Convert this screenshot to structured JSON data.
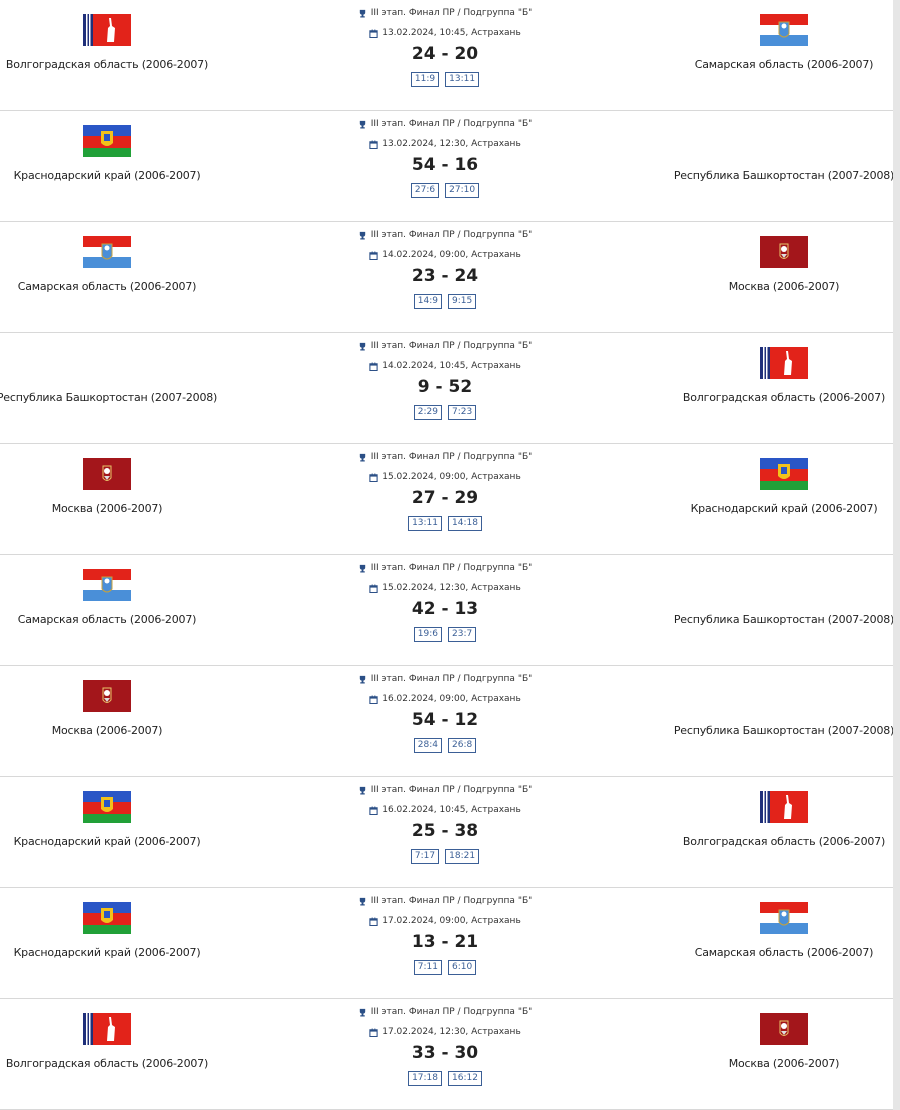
{
  "matches": [
    {
      "home": "Волгоградская область (2006-2007)",
      "away": "Самарская область (2006-2007)",
      "stage": "III этап. Финал ПР / Подгруппа \"Б\"",
      "date": "13.02.2024, 10:45, Астрахань",
      "score": "24 - 20",
      "periods": [
        "11:9",
        "13:11"
      ]
    },
    {
      "home": "Краснодарский край (2006-2007)",
      "away": "Республика Башкортостан (2007-2008)",
      "stage": "III этап. Финал ПР / Подгруппа \"Б\"",
      "date": "13.02.2024, 12:30, Астрахань",
      "score": "54 - 16",
      "periods": [
        "27:6",
        "27:10"
      ]
    },
    {
      "home": "Самарская область (2006-2007)",
      "away": "Москва (2006-2007)",
      "stage": "III этап. Финал ПР / Подгруппа \"Б\"",
      "date": "14.02.2024, 09:00, Астрахань",
      "score": "23 - 24",
      "periods": [
        "14:9",
        "9:15"
      ]
    },
    {
      "home": "Республика Башкортостан (2007-2008)",
      "away": "Волгоградская область (2006-2007)",
      "stage": "III этап. Финал ПР / Подгруппа \"Б\"",
      "date": "14.02.2024, 10:45, Астрахань",
      "score": "9 - 52",
      "periods": [
        "2:29",
        "7:23"
      ]
    },
    {
      "home": "Москва (2006-2007)",
      "away": "Краснодарский край (2006-2007)",
      "stage": "III этап. Финал ПР / Подгруппа \"Б\"",
      "date": "15.02.2024, 09:00, Астрахань",
      "score": "27 - 29",
      "periods": [
        "13:11",
        "14:18"
      ]
    },
    {
      "home": "Самарская область (2006-2007)",
      "away": "Республика Башкортостан (2007-2008)",
      "stage": "III этап. Финал ПР / Подгруппа \"Б\"",
      "date": "15.02.2024, 12:30, Астрахань",
      "score": "42 - 13",
      "periods": [
        "19:6",
        "23:7"
      ]
    },
    {
      "home": "Москва (2006-2007)",
      "away": "Республика Башкортостан (2007-2008)",
      "stage": "III этап. Финал ПР / Подгруппа \"Б\"",
      "date": "16.02.2024, 09:00, Астрахань",
      "score": "54 - 12",
      "periods": [
        "28:4",
        "26:8"
      ]
    },
    {
      "home": "Краснодарский край (2006-2007)",
      "away": "Волгоградская область (2006-2007)",
      "stage": "III этап. Финал ПР / Подгруппа \"Б\"",
      "date": "16.02.2024, 10:45, Астрахань",
      "score": "25 - 38",
      "periods": [
        "7:17",
        "18:21"
      ]
    },
    {
      "home": "Краснодарский край (2006-2007)",
      "away": "Самарская область (2006-2007)",
      "stage": "III этап. Финал ПР / Подгруппа \"Б\"",
      "date": "17.02.2024, 09:00, Астрахань",
      "score": "13 - 21",
      "periods": [
        "7:11",
        "6:10"
      ]
    },
    {
      "home": "Волгоградская область (2006-2007)",
      "away": "Москва (2006-2007)",
      "stage": "III этап. Финал ПР / Подгруппа \"Б\"",
      "date": "17.02.2024, 12:30, Астрахань",
      "score": "33 - 30",
      "periods": [
        "17:18",
        "16:12"
      ]
    }
  ]
}
